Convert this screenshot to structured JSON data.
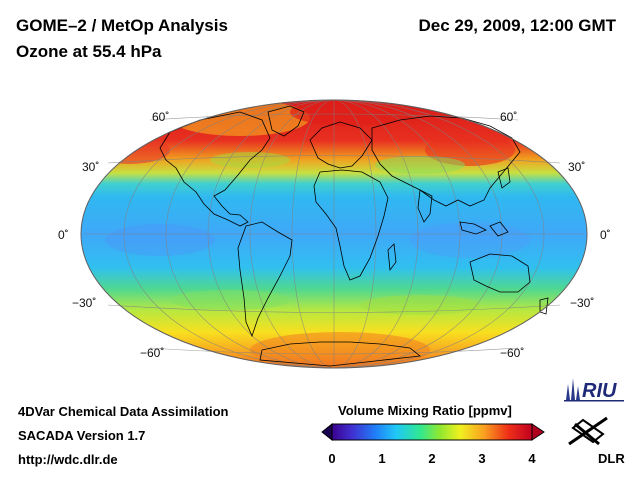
{
  "header": {
    "title_line1": "GOME–2 / MetOp Analysis",
    "title_line2": "Ozone at 55.4 hPa",
    "date": "Dec 29, 2009, 12:00 GMT"
  },
  "map": {
    "projection": "hammer-aitoff",
    "latitude_labels": [
      "60˚",
      "30˚",
      "0˚",
      "−30˚",
      "−60˚"
    ],
    "color_regions": {
      "north_polar": "#e02018",
      "north_mid": "#f0c020",
      "tropics": "#30b8f0",
      "tropics_deep": "#40a0f8",
      "south_mid": "#60d060",
      "south_subpolar": "#f8e020",
      "south_polar": "#f08020"
    }
  },
  "colorbar": {
    "title": "Volume Mixing Ratio [ppmv]",
    "ticks": [
      "0",
      "1",
      "2",
      "3",
      "4"
    ],
    "range": [
      0,
      4
    ],
    "colors": [
      "#1a0050",
      "#5020c0",
      "#2060f0",
      "#20c0f8",
      "#30e8a0",
      "#60e040",
      "#f0f020",
      "#f8a020",
      "#f03018",
      "#c00020"
    ]
  },
  "footer": {
    "line1": "4DVar Chemical Data Assimilation",
    "line2": "SACADA Version 1.7",
    "line3": "http://wdc.dlr.de"
  },
  "logos": {
    "riu": "RIU",
    "dlr": "DLR"
  }
}
